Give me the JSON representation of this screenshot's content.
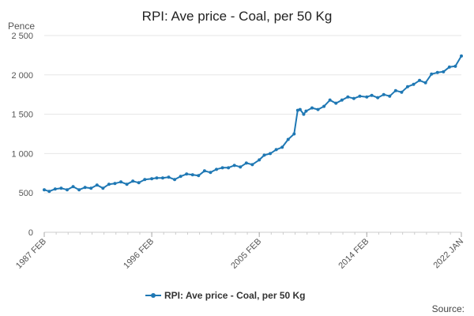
{
  "chart_data": {
    "type": "line",
    "title": "RPI: Ave price - Coal, per 50 Kg",
    "ylabel": "Pence",
    "xlabel": "",
    "ylim": [
      0,
      2500
    ],
    "yticks": [
      0,
      500,
      1000,
      1500,
      2000,
      2500
    ],
    "ytick_labels": [
      "0",
      "500",
      "1 000",
      "1 500",
      "2 000",
      "2 500"
    ],
    "xlim": [
      1987.083,
      2022.0
    ],
    "xticks": [
      1987.083,
      1996.083,
      2005.083,
      2014.083,
      2022.0
    ],
    "xtick_labels": [
      "1987 FEB",
      "1996 FEB",
      "2005 FEB",
      "2014 FEB",
      "2022 JAN"
    ],
    "grid": true,
    "legend_position": "bottom",
    "series": [
      {
        "name": "RPI: Ave price - Coal, per 50 Kg",
        "color": "#1f78b4",
        "x": [
          1987.083,
          1987.5,
          1988.0,
          1988.5,
          1989.0,
          1989.5,
          1990.0,
          1990.5,
          1991.0,
          1991.5,
          1992.0,
          1992.5,
          1993.0,
          1993.5,
          1994.0,
          1994.5,
          1995.0,
          1995.5,
          1996.083,
          1996.5,
          1997.0,
          1997.5,
          1998.0,
          1998.5,
          1999.0,
          1999.5,
          2000.0,
          2000.5,
          2001.0,
          2001.5,
          2002.0,
          2002.5,
          2003.0,
          2003.5,
          2004.0,
          2004.5,
          2005.083,
          2005.5,
          2006.0,
          2006.5,
          2007.0,
          2007.5,
          2008.0,
          2008.3,
          2008.5,
          2008.8,
          2009.0,
          2009.5,
          2010.0,
          2010.5,
          2011.0,
          2011.5,
          2012.0,
          2012.5,
          2013.0,
          2013.5,
          2014.083,
          2014.5,
          2015.0,
          2015.5,
          2016.0,
          2016.5,
          2017.0,
          2017.5,
          2018.0,
          2018.5,
          2019.0,
          2019.5,
          2020.0,
          2020.5,
          2021.0,
          2021.5,
          2022.0
        ],
        "values": [
          540,
          520,
          550,
          560,
          540,
          580,
          540,
          570,
          560,
          600,
          560,
          610,
          620,
          640,
          610,
          650,
          630,
          670,
          680,
          690,
          690,
          700,
          670,
          710,
          740,
          730,
          720,
          780,
          760,
          800,
          820,
          820,
          850,
          830,
          880,
          860,
          920,
          980,
          1000,
          1050,
          1080,
          1180,
          1250,
          1550,
          1560,
          1500,
          1540,
          1580,
          1560,
          1600,
          1680,
          1640,
          1680,
          1720,
          1700,
          1730,
          1720,
          1740,
          1710,
          1750,
          1730,
          1800,
          1780,
          1850,
          1880,
          1930,
          1900,
          2010,
          2030,
          2040,
          2100,
          2110,
          2240
        ]
      }
    ],
    "legend": [
      "RPI: Ave price - Coal, per 50 Kg"
    ],
    "source_label": "Source:"
  }
}
